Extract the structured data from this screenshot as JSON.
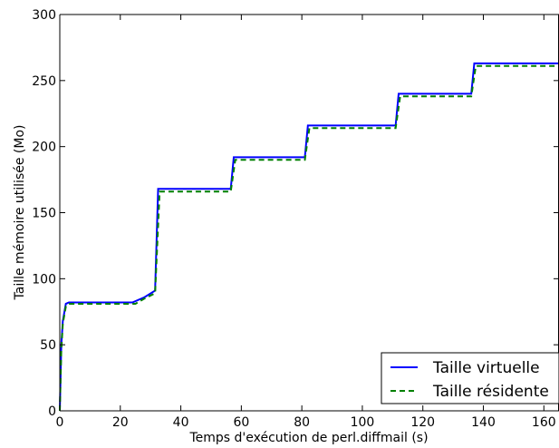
{
  "chart_data": {
    "type": "line",
    "title": "",
    "xlabel": "Temps d'exécution de perl.diffmail (s)",
    "ylabel": "Taille mémoire utilisée (Mo)",
    "xlim": [
      0,
      165
    ],
    "ylim": [
      0,
      300
    ],
    "xticks": [
      0,
      20,
      40,
      60,
      80,
      100,
      120,
      140,
      160
    ],
    "yticks": [
      0,
      50,
      100,
      150,
      200,
      250,
      300
    ],
    "xtick_labels": [
      "0",
      "20",
      "40",
      "60",
      "80",
      "100",
      "120",
      "140",
      "160"
    ],
    "ytick_labels": [
      "0",
      "50",
      "100",
      "150",
      "200",
      "250",
      "300"
    ],
    "grid": false,
    "legend_position": "bottom-right",
    "series": [
      {
        "name": "Taille virtuelle",
        "color": "#0000ff",
        "style": "solid",
        "x": [
          0,
          0.5,
          1,
          2,
          3,
          10,
          20,
          24,
          28,
          31.5,
          32.5,
          40,
          50,
          56.5,
          57.5,
          70,
          81,
          82,
          100,
          111,
          112,
          125,
          136,
          137,
          150,
          165
        ],
        "y": [
          0,
          50,
          68,
          81,
          82,
          82,
          82,
          82,
          86,
          91,
          168,
          168,
          168,
          168,
          192,
          192,
          192,
          216,
          216,
          216,
          240,
          240,
          240,
          263,
          263,
          263
        ]
      },
      {
        "name": "Taille résidente",
        "color": "#008000",
        "style": "dashed",
        "x": [
          0,
          0.5,
          1,
          2,
          3,
          10,
          20,
          25,
          28,
          31.5,
          33,
          40,
          50,
          56.5,
          58,
          70,
          81,
          82.5,
          100,
          111,
          112.5,
          125,
          136,
          137.5,
          150,
          165
        ],
        "y": [
          0,
          46,
          66,
          79,
          81,
          81,
          81,
          81,
          85,
          89,
          166,
          166,
          166,
          166,
          190,
          190,
          190,
          214,
          214,
          214,
          238,
          238,
          238,
          261,
          261,
          261
        ]
      }
    ]
  }
}
